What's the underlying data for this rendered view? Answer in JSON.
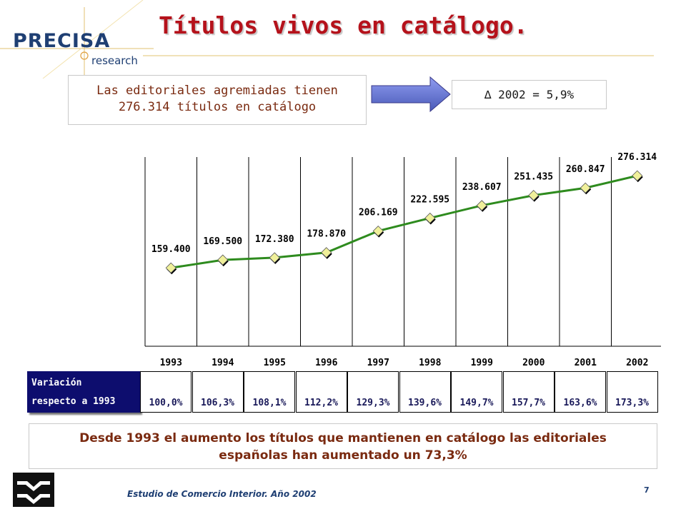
{
  "logo": {
    "name": "PRECISA",
    "sub": "research"
  },
  "title": "Títulos vivos en catálogo.",
  "info": {
    "line1": "Las editoriales agremiadas tienen",
    "line2": "276.314 títulos en catálogo"
  },
  "delta": "∆ 2002 = 5,9%",
  "chart_data": {
    "type": "line",
    "categories": [
      "1993",
      "1994",
      "1995",
      "1996",
      "1997",
      "1998",
      "1999",
      "2000",
      "2001",
      "2002"
    ],
    "values": [
      159400,
      169500,
      172380,
      178870,
      206169,
      222595,
      238607,
      251435,
      260847,
      276314
    ],
    "labels": [
      "159.400",
      "169.500",
      "172.380",
      "178.870",
      "206.169",
      "222.595",
      "238.607",
      "251.435",
      "260.847",
      "276.314"
    ],
    "ylim": [
      60000,
      300000
    ],
    "line_color": "#2e8b1e",
    "marker_color": "#f0f09a",
    "grid": "vertical"
  },
  "variation": {
    "header_line1": "Variación",
    "header_line2": "respecto a 1993",
    "values": [
      "100,0%",
      "106,3%",
      "108,1%",
      "112,2%",
      "129,3%",
      "139,6%",
      "149,7%",
      "157,7%",
      "163,6%",
      "173,3%"
    ]
  },
  "summary": {
    "line1": "Desde 1993 el aumento los títulos que mantienen en catálogo las editoriales",
    "line2": "españolas han aumentado un 73,3%"
  },
  "footer": {
    "text": "Estudio de Comercio Interior. Año 2002",
    "page": "7"
  },
  "colors": {
    "title": "#b5121b",
    "brand": "#1f3f73",
    "arrow": "#6f7fd6",
    "header_bg": "#0d0d6e"
  }
}
